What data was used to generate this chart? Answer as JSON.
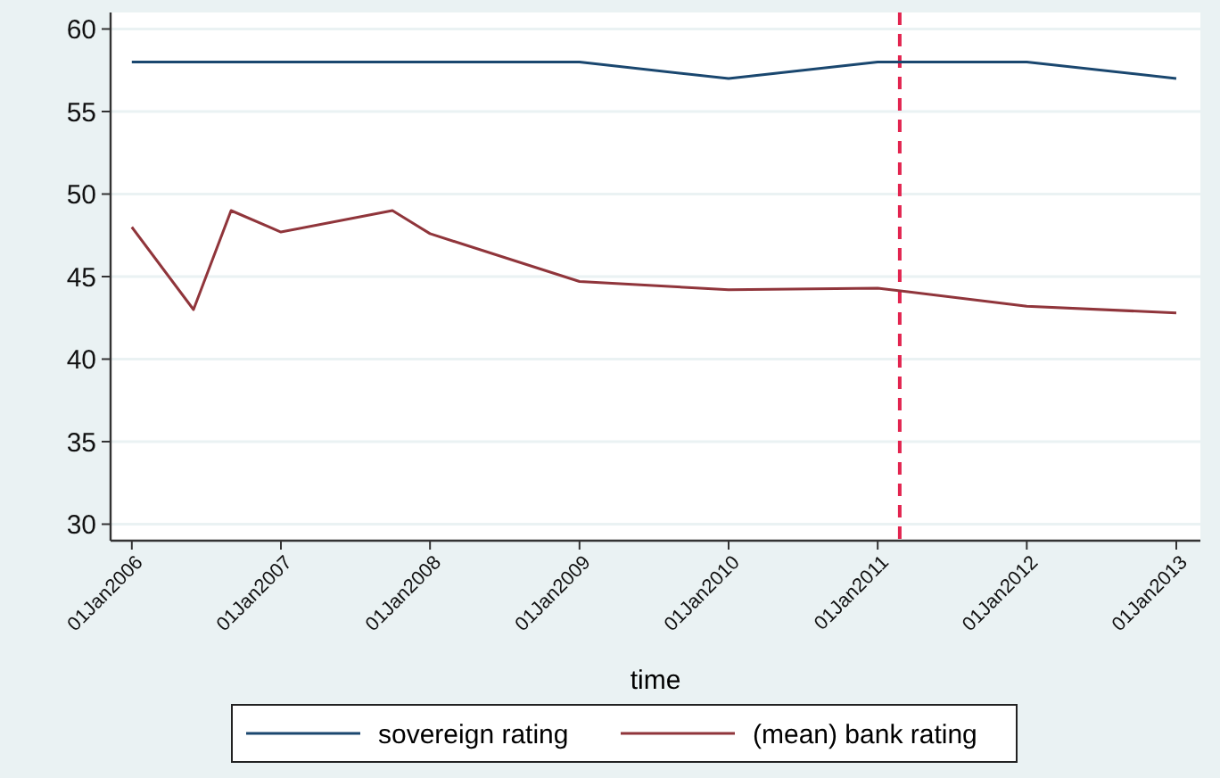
{
  "chart_data": {
    "type": "line",
    "xlabel": "time",
    "xlim": [
      "2005-11-10",
      "2013-03-01"
    ],
    "ylim": [
      29,
      61
    ],
    "xticks": [
      {
        "value": "2006-01-01",
        "label": "01Jan2006"
      },
      {
        "value": "2007-01-01",
        "label": "01Jan2007"
      },
      {
        "value": "2008-01-01",
        "label": "01Jan2008"
      },
      {
        "value": "2009-01-01",
        "label": "01Jan2009"
      },
      {
        "value": "2010-01-01",
        "label": "01Jan2010"
      },
      {
        "value": "2011-01-01",
        "label": "01Jan2011"
      },
      {
        "value": "2012-01-01",
        "label": "01Jan2012"
      },
      {
        "value": "2013-01-01",
        "label": "01Jan2013"
      }
    ],
    "yticks": [
      30,
      35,
      40,
      45,
      50,
      55,
      60
    ],
    "grid": "y",
    "legend": "bottom",
    "line_style": "solid",
    "marker": "none",
    "series": [
      {
        "name": "sovereign rating",
        "color": "#1a476f",
        "x": [
          "2006-01-01",
          "2007-01-01",
          "2008-01-01",
          "2009-01-01",
          "2010-01-01",
          "2011-01-01",
          "2012-01-01",
          "2013-01-01"
        ],
        "values": [
          58,
          58,
          58,
          58,
          57,
          58,
          58,
          57
        ]
      },
      {
        "name": "(mean) bank rating",
        "color": "#90353b",
        "x": [
          "2006-01-01",
          "2006-06-01",
          "2006-09-01",
          "2007-01-01",
          "2007-10-01",
          "2008-01-01",
          "2009-01-01",
          "2010-01-01",
          "2011-01-01",
          "2012-01-01",
          "2013-01-01"
        ],
        "values": [
          48,
          43,
          49,
          47.7,
          49,
          47.6,
          44.7,
          44.2,
          44.3,
          43.2,
          42.8
        ]
      }
    ],
    "ref_lines": [
      {
        "axis": "x",
        "value": "2011-02-24",
        "color": "#e2244f",
        "line_style": "dashed"
      }
    ]
  }
}
